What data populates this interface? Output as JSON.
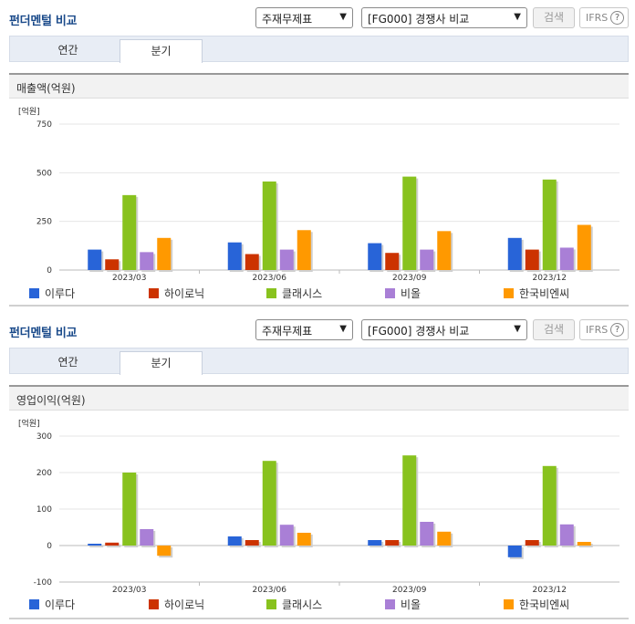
{
  "colors": {
    "이루다": "#2864d8",
    "하이로닉": "#cc3300",
    "클래시스": "#88c21e",
    "비올": "#a97fd6",
    "한국비엔씨": "#ff9900",
    "grid": "#e6e6e6",
    "axis": "#bbbbbb"
  },
  "panels": [
    {
      "title": "펀더멘털 비교",
      "select1": "주재무제표",
      "select2": "[FG000] 경쟁사 비교",
      "search_label": "검색",
      "ifrs_label": "IFRS",
      "help_glyph": "?",
      "tabs": [
        {
          "label": "연간",
          "active": false
        },
        {
          "label": "분기",
          "active": true
        }
      ],
      "chart_title": "매출액(억원)",
      "unit_label": "[억원]",
      "chart_data": {
        "type": "bar",
        "title": "매출액(억원)",
        "categories": [
          "2023/03",
          "2023/06",
          "2023/09",
          "2023/12"
        ],
        "ylim": [
          0,
          750
        ],
        "yticks": [
          0,
          250,
          500,
          750
        ],
        "ytick_labels": [
          "0",
          "250",
          "500",
          "750"
        ],
        "series": [
          {
            "name": "이루다",
            "values": [
              105,
              142,
              138,
              165
            ]
          },
          {
            "name": "하이로닉",
            "values": [
              55,
              82,
              88,
              105
            ]
          },
          {
            "name": "클래시스",
            "values": [
              385,
              455,
              480,
              465
            ]
          },
          {
            "name": "비올",
            "values": [
              92,
              105,
              105,
              115
            ]
          },
          {
            "name": "한국비엔씨",
            "values": [
              165,
              205,
              200,
              232
            ]
          }
        ],
        "legend": "bottom"
      }
    },
    {
      "title": "펀더멘털 비교",
      "select1": "주재무제표",
      "select2": "[FG000] 경쟁사 비교",
      "search_label": "검색",
      "ifrs_label": "IFRS",
      "help_glyph": "?",
      "tabs": [
        {
          "label": "연간",
          "active": false
        },
        {
          "label": "분기",
          "active": true
        }
      ],
      "chart_title": "영업이익(억원)",
      "unit_label": "[억원]",
      "chart_data": {
        "type": "bar",
        "title": "영업이익(억원)",
        "categories": [
          "2023/03",
          "2023/06",
          "2023/09",
          "2023/12"
        ],
        "ylim": [
          -100,
          300
        ],
        "yticks": [
          -100,
          0,
          100,
          200,
          300
        ],
        "ytick_labels": [
          "-100",
          "0",
          "100",
          "200",
          "300"
        ],
        "series": [
          {
            "name": "이루다",
            "values": [
              5,
              25,
              15,
              -32
            ]
          },
          {
            "name": "하이로닉",
            "values": [
              8,
              15,
              15,
              15
            ]
          },
          {
            "name": "클래시스",
            "values": [
              200,
              232,
              247,
              218
            ]
          },
          {
            "name": "비올",
            "values": [
              45,
              57,
              65,
              58
            ]
          },
          {
            "name": "한국비엔씨",
            "values": [
              -28,
              35,
              38,
              10
            ]
          }
        ],
        "legend": "bottom"
      }
    }
  ]
}
